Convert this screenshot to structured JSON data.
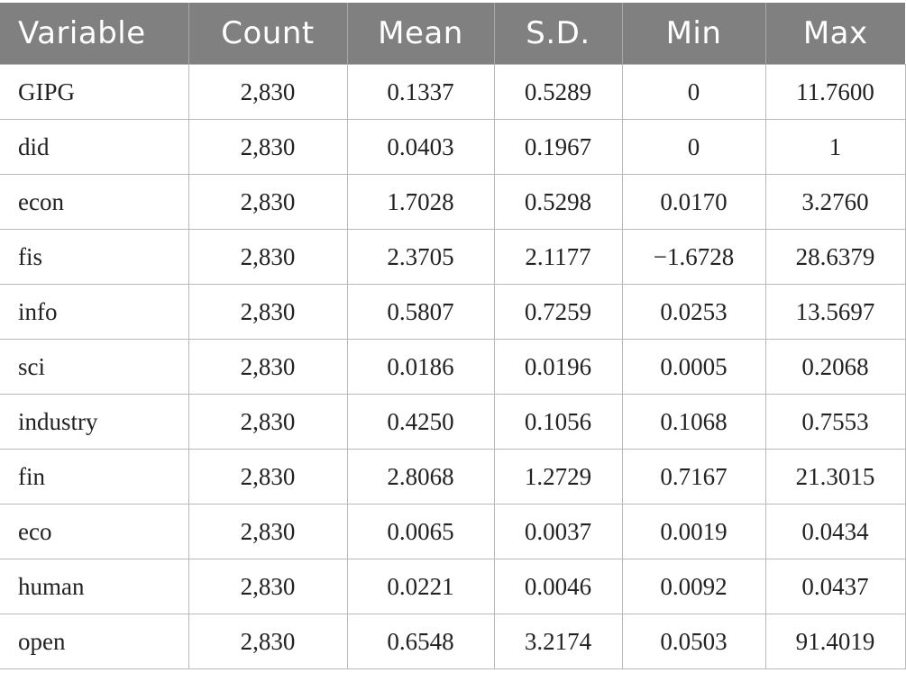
{
  "table": {
    "headers": [
      "Variable",
      "Count",
      "Mean",
      "S.D.",
      "Min",
      "Max"
    ],
    "rows": [
      [
        "GIPG",
        "2,830",
        "0.1337",
        "0.5289",
        "0",
        "11.7600"
      ],
      [
        "did",
        "2,830",
        "0.0403",
        "0.1967",
        "0",
        "1"
      ],
      [
        "econ",
        "2,830",
        "1.7028",
        "0.5298",
        "0.0170",
        "3.2760"
      ],
      [
        "fis",
        "2,830",
        "2.3705",
        "2.1177",
        "−1.6728",
        "28.6379"
      ],
      [
        "info",
        "2,830",
        "0.5807",
        "0.7259",
        "0.0253",
        "13.5697"
      ],
      [
        "sci",
        "2,830",
        "0.0186",
        "0.0196",
        "0.0005",
        "0.2068"
      ],
      [
        "industry",
        "2,830",
        "0.4250",
        "0.1056",
        "0.1068",
        "0.7553"
      ],
      [
        "fin",
        "2,830",
        "2.8068",
        "1.2729",
        "0.7167",
        "21.3015"
      ],
      [
        "eco",
        "2,830",
        "0.0065",
        "0.0037",
        "0.0019",
        "0.0434"
      ],
      [
        "human",
        "2,830",
        "0.0221",
        "0.0046",
        "0.0092",
        "0.0437"
      ],
      [
        "open",
        "2,830",
        "0.6548",
        "3.2174",
        "0.0503",
        "91.4019"
      ]
    ]
  }
}
